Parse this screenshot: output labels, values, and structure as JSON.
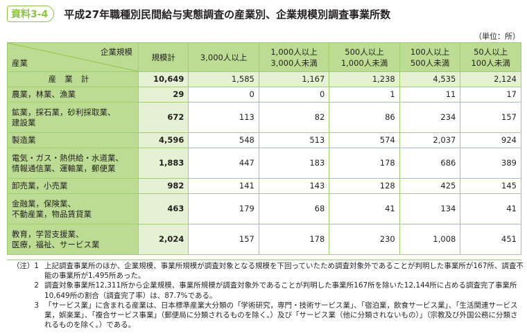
{
  "badge": "資料3-4",
  "title": "平成27年職種別民間給与実態調査の産業別、企業規模別調査事業所数",
  "unit": "（単位：所）",
  "table": {
    "corner_top": "企業規模",
    "corner_bottom": "産業",
    "columns": [
      "規模計",
      "3,000人以上",
      "1,000人以上\n3,000人未満",
      "500人以上\n1,000人未満",
      "100人以上\n500人未満",
      "50人以上\n100人未満"
    ],
    "total": {
      "label": "産業計",
      "values": [
        "10,649",
        "1,585",
        "1,167",
        "1,238",
        "4,535",
        "2,124"
      ]
    },
    "rows": [
      {
        "label": "農業，林業、漁業",
        "values": [
          "29",
          "0",
          "0",
          "1",
          "11",
          "17"
        ]
      },
      {
        "label": "鉱業，採石業，砂利採取業、\n建設業",
        "values": [
          "672",
          "113",
          "82",
          "86",
          "234",
          "157"
        ]
      },
      {
        "label": "製造業",
        "values": [
          "4,596",
          "548",
          "513",
          "574",
          "2,037",
          "924"
        ]
      },
      {
        "label": "電気・ガス・熱供給・水道業、\n情報通信業、運輸業，郵便業",
        "values": [
          "1,883",
          "447",
          "183",
          "178",
          "686",
          "389"
        ]
      },
      {
        "label": "卸売業，小売業",
        "values": [
          "982",
          "141",
          "143",
          "128",
          "425",
          "145"
        ]
      },
      {
        "label": "金融業，保険業、\n不動産業，物品賃貸業",
        "values": [
          "463",
          "179",
          "68",
          "41",
          "134",
          "41"
        ]
      },
      {
        "label": "教育，学習支援業、\n医療，福祉、サービス業",
        "values": [
          "2,024",
          "157",
          "178",
          "230",
          "1,008",
          "451"
        ]
      }
    ]
  },
  "notes": [
    {
      "label": "（注）1",
      "text": "上記調査事業所のほか、企業規模、事業所規模が調査対象となる規模を下回っていたため調査対象外であることが判明した事業所が167所、調査不能の事業所が1,495所あった。"
    },
    {
      "label": "2",
      "text": "調査対象事業所12,311所から企業規模、事業所規模が調査対象外であることが判明した事業所167所を除いた12,144所に占める調査完了事業所10,649所の割合（調査完了率）は、87.7%である。"
    },
    {
      "label": "3",
      "text": "「サービス業」に含まれる産業は、日本標準産業大分類の「学術研究，専門・技術サービス業」、「宿泊業，飲食サービス業」、「生活関連サービス業，娯楽業」、「複合サービス事業」（郵便局に分類されるものを除く。）及び「サービス業（他に分類されないもの）」（宗教及び外国公務に分類されるものを除く。）である。"
    }
  ]
}
